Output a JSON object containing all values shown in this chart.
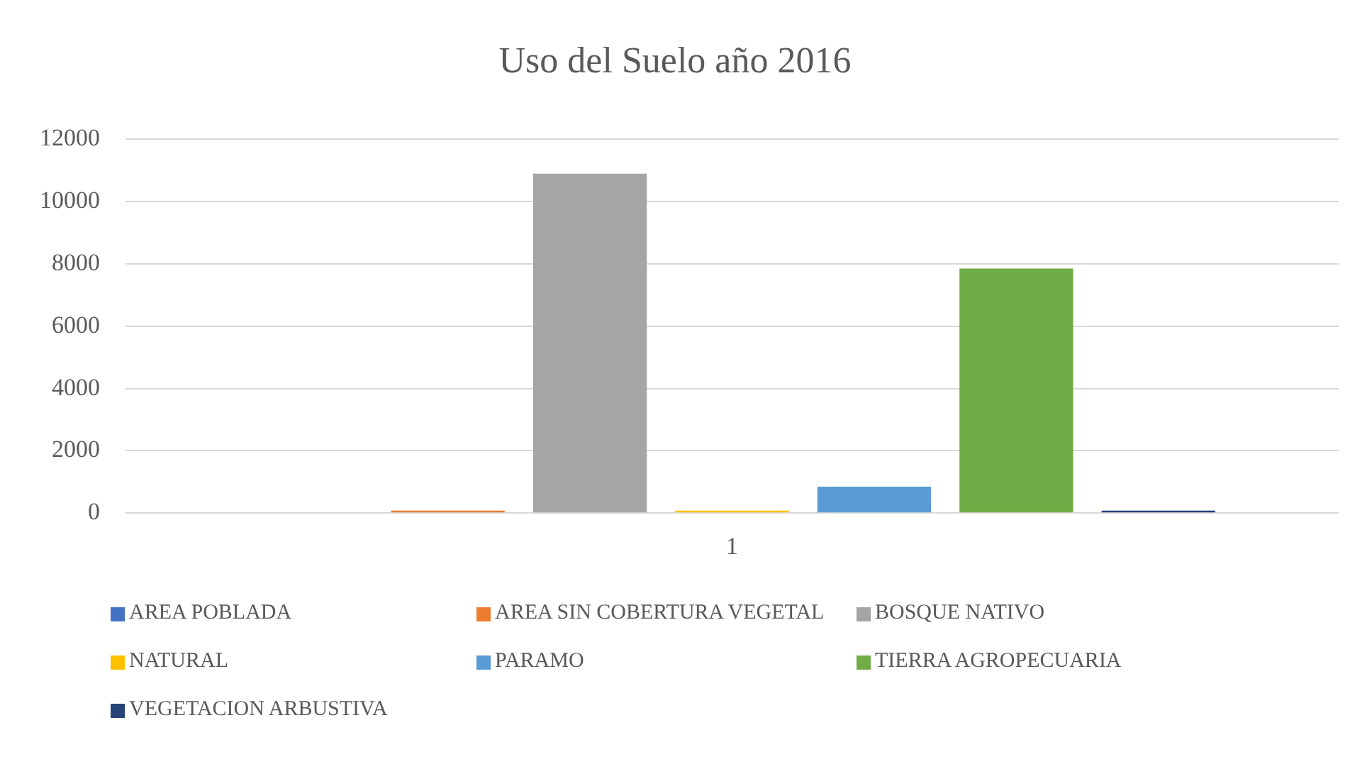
{
  "chart_data": {
    "type": "bar",
    "title": "Uso del Suelo año 2016",
    "categories": [
      "1"
    ],
    "series": [
      {
        "name": "AREA POBLADA",
        "color": "#4472c4",
        "values": [
          0
        ]
      },
      {
        "name": "AREA SIN COBERTURA VEGETAL",
        "color": "#ed7d31",
        "values": [
          80
        ]
      },
      {
        "name": "BOSQUE NATIVO",
        "color": "#a5a5a5",
        "values": [
          10900
        ]
      },
      {
        "name": "NATURAL",
        "color": "#ffc000",
        "values": [
          80
        ]
      },
      {
        "name": "PARAMO",
        "color": "#5b9bd5",
        "values": [
          850
        ]
      },
      {
        "name": "TIERRA AGROPECUARIA",
        "color": "#70ad47",
        "values": [
          7850
        ]
      },
      {
        "name": "VEGETACION ARBUSTIVA",
        "color": "#264478",
        "values": [
          80
        ]
      }
    ],
    "ylim": [
      0,
      12000
    ],
    "yticks": [
      0,
      2000,
      4000,
      6000,
      8000,
      10000,
      12000
    ],
    "grid": "y",
    "legend": "bottom"
  }
}
